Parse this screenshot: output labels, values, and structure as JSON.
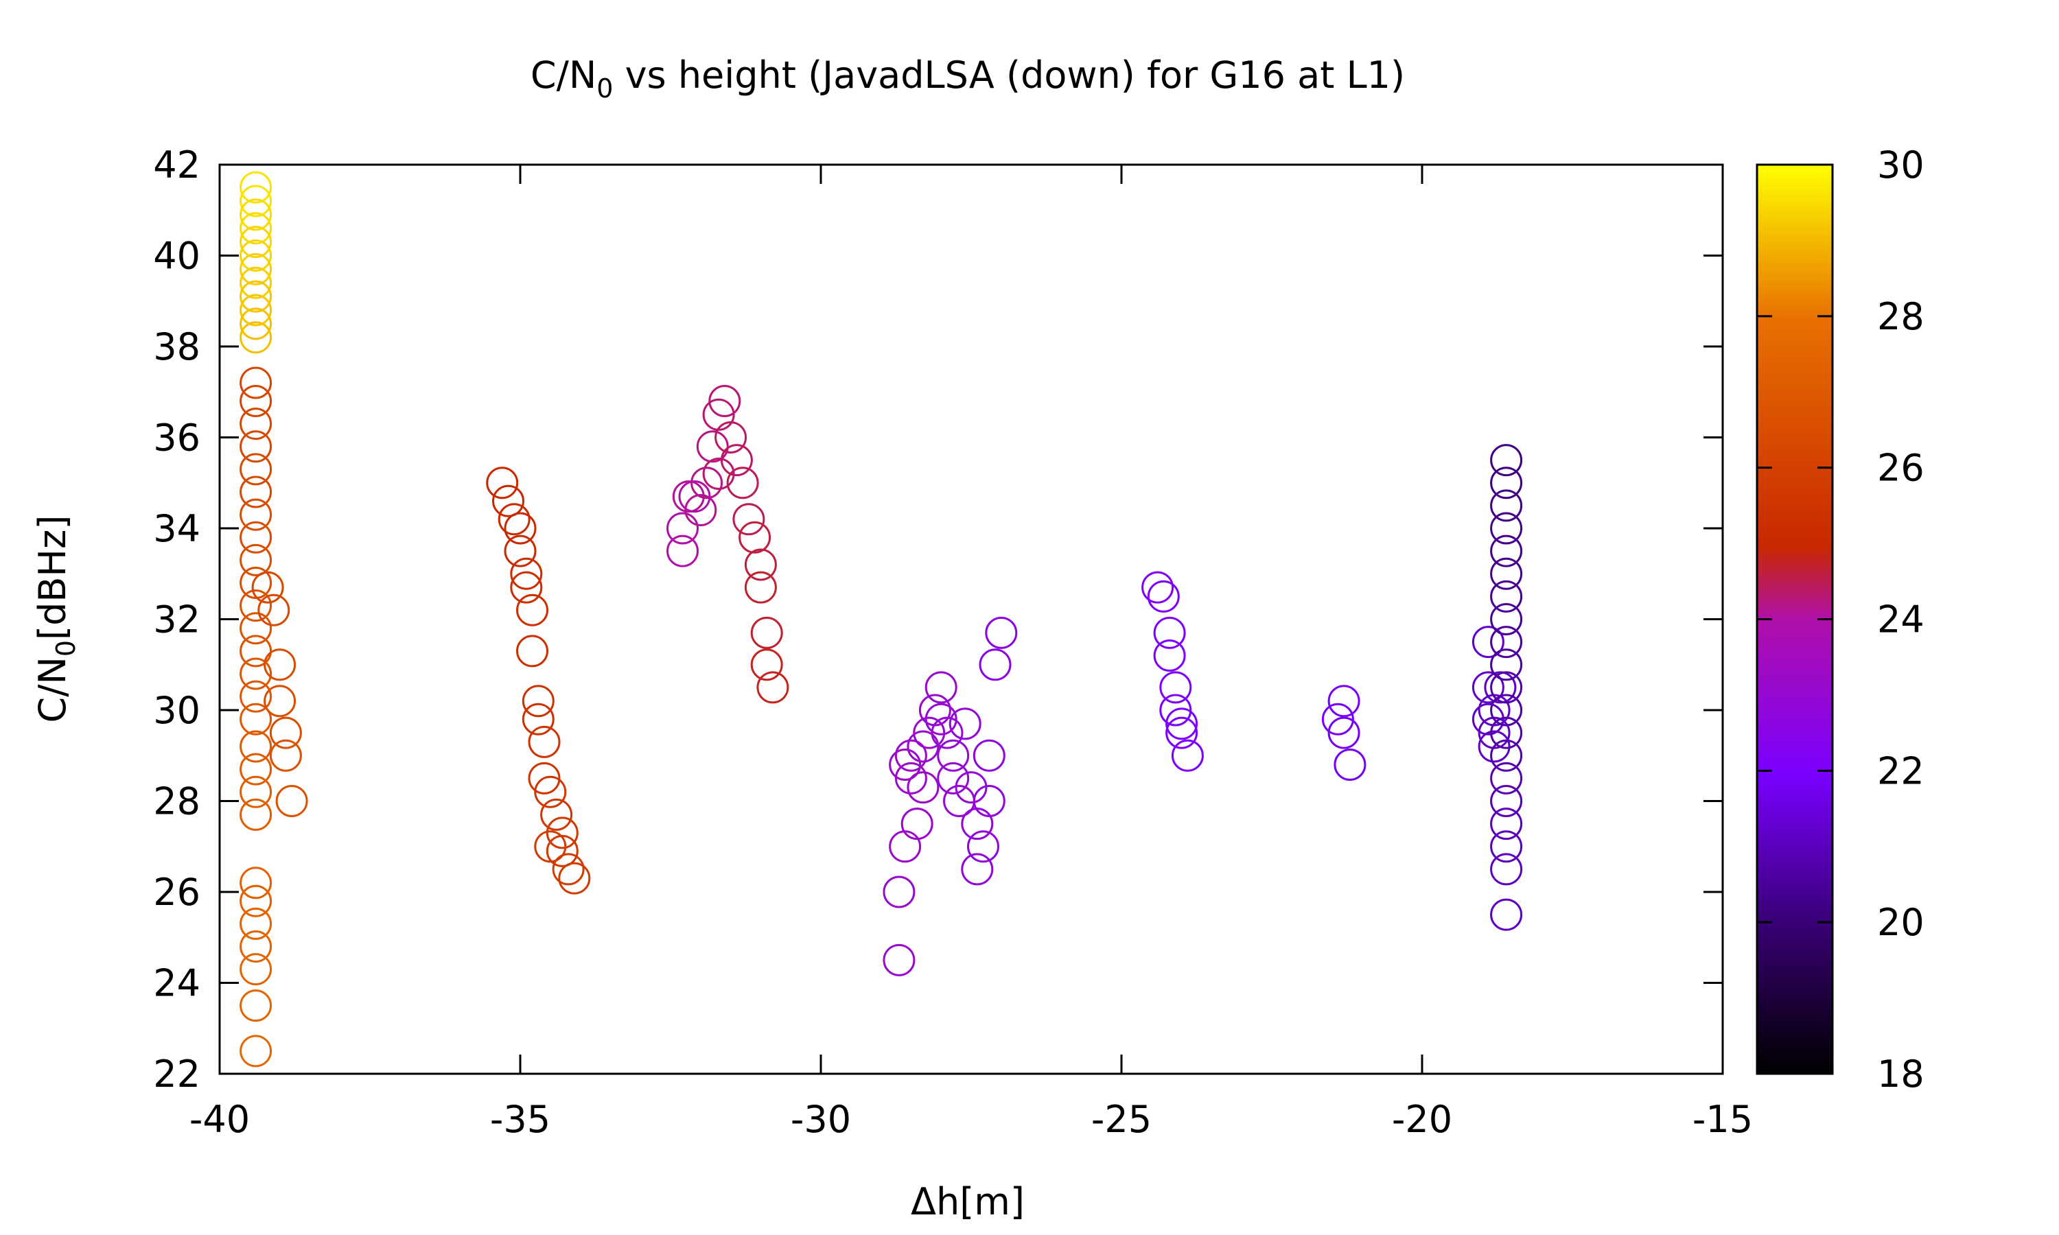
{
  "chart_data": {
    "type": "scatter",
    "title": {
      "main": "C/N",
      "sub": "0",
      "rest": " vs height (JavadLSA (down) for G16 at L1)"
    },
    "xlabel": "Δh[m]",
    "ylabel": {
      "main": "C/N",
      "sub": "0",
      "rest": "[dBHz]"
    },
    "xlim": [
      -40,
      -15
    ],
    "ylim": [
      22,
      42
    ],
    "xticks": [
      "-40",
      "-35",
      "-30",
      "-25",
      "-20",
      "-15"
    ],
    "yticks": [
      "22",
      "24",
      "26",
      "28",
      "30",
      "32",
      "34",
      "36",
      "38",
      "40",
      "42"
    ],
    "colorbar": {
      "range": [
        18,
        30
      ],
      "ticks": [
        "18",
        "20",
        "22",
        "24",
        "26",
        "28",
        "30"
      ],
      "colormap": [
        "#000000",
        "#3a0078",
        "#7a00ff",
        "#b010a8",
        "#c82800",
        "#e87000",
        "#ffff00"
      ]
    },
    "points": [
      [
        -39.4,
        41.5,
        29.6
      ],
      [
        -39.4,
        41.2,
        29.6
      ],
      [
        -39.4,
        40.9,
        29.5
      ],
      [
        -39.4,
        40.6,
        29.5
      ],
      [
        -39.4,
        40.3,
        29.4
      ],
      [
        -39.4,
        40.0,
        29.4
      ],
      [
        -39.4,
        39.7,
        29.3
      ],
      [
        -39.4,
        39.4,
        29.3
      ],
      [
        -39.4,
        39.1,
        29.2
      ],
      [
        -39.4,
        38.8,
        29.2
      ],
      [
        -39.4,
        38.5,
        29.1
      ],
      [
        -39.4,
        38.2,
        29.1
      ],
      [
        -39.4,
        37.2,
        26.2
      ],
      [
        -39.4,
        36.8,
        26.2
      ],
      [
        -39.4,
        36.3,
        26.3
      ],
      [
        -39.4,
        35.8,
        26.3
      ],
      [
        -39.4,
        35.3,
        26.4
      ],
      [
        -39.4,
        34.8,
        26.4
      ],
      [
        -39.4,
        34.3,
        26.5
      ],
      [
        -39.4,
        33.8,
        26.5
      ],
      [
        -39.4,
        33.3,
        26.6
      ],
      [
        -39.4,
        32.8,
        26.6
      ],
      [
        -39.4,
        32.3,
        26.7
      ],
      [
        -39.4,
        31.8,
        26.8
      ],
      [
        -39.4,
        31.3,
        26.8
      ],
      [
        -39.4,
        30.8,
        26.9
      ],
      [
        -39.4,
        30.3,
        26.9
      ],
      [
        -39.4,
        29.8,
        27.0
      ],
      [
        -39.4,
        29.2,
        27.1
      ],
      [
        -39.4,
        28.7,
        27.1
      ],
      [
        -39.4,
        28.2,
        27.2
      ],
      [
        -39.4,
        27.7,
        27.2
      ],
      [
        -39.4,
        26.2,
        27.3
      ],
      [
        -39.4,
        25.8,
        27.3
      ],
      [
        -39.4,
        25.3,
        27.4
      ],
      [
        -39.4,
        24.8,
        27.4
      ],
      [
        -39.4,
        24.3,
        27.5
      ],
      [
        -39.4,
        23.5,
        27.5
      ],
      [
        -39.4,
        22.5,
        27.6
      ],
      [
        -39.2,
        32.7,
        26.3
      ],
      [
        -39.1,
        32.2,
        26.4
      ],
      [
        -39.0,
        31.0,
        26.5
      ],
      [
        -39.0,
        30.2,
        26.6
      ],
      [
        -38.9,
        29.5,
        26.6
      ],
      [
        -38.9,
        29.0,
        26.7
      ],
      [
        -38.8,
        28.0,
        26.7
      ],
      [
        -35.3,
        35.0,
        25.0
      ],
      [
        -35.2,
        34.6,
        25.0
      ],
      [
        -35.1,
        34.2,
        25.1
      ],
      [
        -35.0,
        33.5,
        25.1
      ],
      [
        -34.9,
        33.0,
        25.2
      ],
      [
        -34.9,
        32.7,
        25.2
      ],
      [
        -34.8,
        32.2,
        25.3
      ],
      [
        -34.8,
        31.3,
        25.3
      ],
      [
        -34.7,
        30.2,
        25.4
      ],
      [
        -34.7,
        29.8,
        25.4
      ],
      [
        -34.6,
        29.3,
        25.5
      ],
      [
        -34.6,
        28.5,
        25.5
      ],
      [
        -34.5,
        28.2,
        25.6
      ],
      [
        -34.4,
        27.7,
        25.6
      ],
      [
        -34.3,
        27.3,
        25.7
      ],
      [
        -34.3,
        26.9,
        25.7
      ],
      [
        -34.2,
        26.5,
        25.8
      ],
      [
        -34.1,
        26.3,
        25.8
      ],
      [
        -34.5,
        27.0,
        25.8
      ],
      [
        -35.0,
        34.0,
        25.0
      ],
      [
        -32.3,
        34.0,
        24.0
      ],
      [
        -32.3,
        33.5,
        24.0
      ],
      [
        -32.2,
        34.7,
        24.1
      ],
      [
        -32.0,
        34.4,
        24.1
      ],
      [
        -31.9,
        35.0,
        24.2
      ],
      [
        -31.8,
        35.8,
        24.2
      ],
      [
        -31.7,
        36.5,
        24.3
      ],
      [
        -31.6,
        36.8,
        24.3
      ],
      [
        -31.5,
        36.0,
        24.4
      ],
      [
        -31.4,
        35.5,
        24.4
      ],
      [
        -31.3,
        35.0,
        24.5
      ],
      [
        -31.2,
        34.2,
        24.5
      ],
      [
        -31.1,
        33.8,
        24.6
      ],
      [
        -31.0,
        33.2,
        24.6
      ],
      [
        -31.0,
        32.7,
        24.7
      ],
      [
        -30.9,
        31.7,
        24.7
      ],
      [
        -30.9,
        31.0,
        24.8
      ],
      [
        -30.8,
        30.5,
        24.8
      ],
      [
        -32.1,
        34.7,
        24.0
      ],
      [
        -31.7,
        35.2,
        24.3
      ],
      [
        -28.7,
        26.0,
        23.1
      ],
      [
        -28.7,
        24.5,
        23.1
      ],
      [
        -28.6,
        27.0,
        23.2
      ],
      [
        -28.5,
        28.5,
        23.2
      ],
      [
        -28.5,
        29.0,
        23.2
      ],
      [
        -28.4,
        27.5,
        23.2
      ],
      [
        -28.3,
        28.3,
        23.2
      ],
      [
        -28.2,
        29.5,
        23.1
      ],
      [
        -28.1,
        30.0,
        23.1
      ],
      [
        -28.0,
        30.5,
        23.1
      ],
      [
        -28.0,
        29.8,
        23.0
      ],
      [
        -27.9,
        29.5,
        23.0
      ],
      [
        -27.8,
        29.0,
        23.0
      ],
      [
        -27.7,
        28.0,
        23.0
      ],
      [
        -27.6,
        29.7,
        22.9
      ],
      [
        -27.5,
        28.3,
        22.9
      ],
      [
        -27.4,
        27.5,
        22.9
      ],
      [
        -27.4,
        26.5,
        22.8
      ],
      [
        -27.3,
        27.0,
        22.8
      ],
      [
        -27.2,
        28.0,
        22.8
      ],
      [
        -27.2,
        29.0,
        22.7
      ],
      [
        -27.1,
        31.0,
        22.6
      ],
      [
        -27.0,
        31.7,
        22.6
      ],
      [
        -28.6,
        28.8,
        23.2
      ],
      [
        -28.3,
        29.2,
        23.1
      ],
      [
        -27.8,
        28.5,
        23.0
      ],
      [
        -24.4,
        32.7,
        22.1
      ],
      [
        -24.3,
        32.5,
        22.1
      ],
      [
        -24.2,
        31.7,
        22.1
      ],
      [
        -24.2,
        31.2,
        22.1
      ],
      [
        -24.1,
        30.5,
        22.1
      ],
      [
        -24.1,
        30.0,
        22.0
      ],
      [
        -24.0,
        29.7,
        22.0
      ],
      [
        -24.0,
        29.5,
        22.0
      ],
      [
        -23.9,
        29.0,
        22.0
      ],
      [
        -21.4,
        29.8,
        21.9
      ],
      [
        -21.3,
        30.2,
        21.9
      ],
      [
        -21.3,
        29.5,
        21.8
      ],
      [
        -21.2,
        28.8,
        21.8
      ],
      [
        -18.9,
        31.5,
        21.2
      ],
      [
        -18.9,
        30.5,
        21.2
      ],
      [
        -18.8,
        30.0,
        21.2
      ],
      [
        -18.8,
        29.5,
        21.1
      ],
      [
        -18.7,
        30.5,
        21.1
      ],
      [
        -18.9,
        29.8,
        21.2
      ],
      [
        -18.8,
        29.2,
        21.1
      ],
      [
        -18.6,
        35.5,
        20.2
      ],
      [
        -18.6,
        35.0,
        20.2
      ],
      [
        -18.6,
        34.5,
        20.3
      ],
      [
        -18.6,
        34.0,
        20.3
      ],
      [
        -18.6,
        33.5,
        20.4
      ],
      [
        -18.6,
        33.0,
        20.4
      ],
      [
        -18.6,
        32.5,
        20.5
      ],
      [
        -18.6,
        32.0,
        20.5
      ],
      [
        -18.6,
        31.5,
        20.6
      ],
      [
        -18.6,
        31.0,
        20.6
      ],
      [
        -18.6,
        30.5,
        20.7
      ],
      [
        -18.6,
        30.0,
        20.7
      ],
      [
        -18.6,
        29.5,
        20.8
      ],
      [
        -18.6,
        29.0,
        20.8
      ],
      [
        -18.6,
        28.5,
        20.9
      ],
      [
        -18.6,
        28.0,
        20.9
      ],
      [
        -18.6,
        27.5,
        21.0
      ],
      [
        -18.6,
        27.0,
        21.0
      ],
      [
        -18.6,
        26.5,
        21.1
      ],
      [
        -18.6,
        25.5,
        21.1
      ]
    ]
  }
}
